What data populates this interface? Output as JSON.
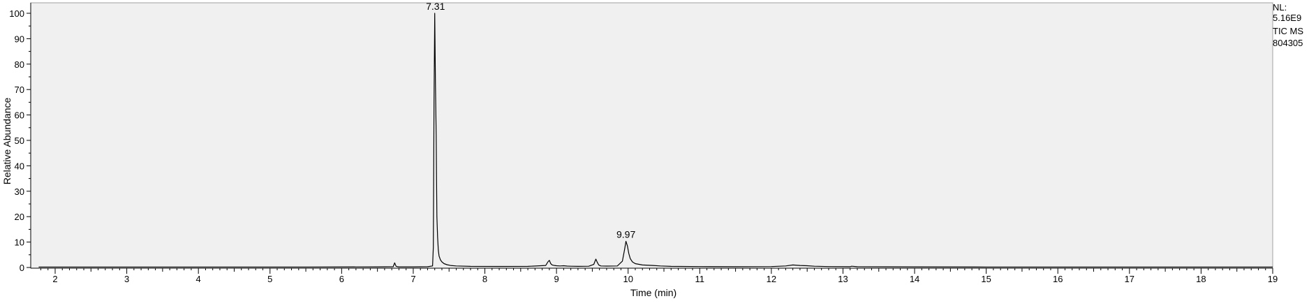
{
  "chart_data": {
    "type": "line",
    "xlabel": "Time (min)",
    "ylabel": "Relative Abundance",
    "xlim": [
      1.77,
      19.0
    ],
    "ylim": [
      0,
      100
    ],
    "x_ticks": [
      "2",
      "3",
      "4",
      "5",
      "6",
      "7",
      "8",
      "9",
      "10",
      "11",
      "12",
      "13",
      "14",
      "15",
      "16",
      "17",
      "18",
      "19"
    ],
    "y_ticks": [
      "0",
      "10",
      "20",
      "30",
      "40",
      "50",
      "60",
      "70",
      "80",
      "90",
      "100"
    ],
    "grid": false,
    "legend": "none",
    "info_text": [
      "NL:",
      "5.16E9",
      "TIC MS",
      "804305"
    ],
    "peak_labels": [
      {
        "text": "7.31",
        "x": 7.31,
        "y": 100
      },
      {
        "text": "9.97",
        "x": 9.97,
        "y": 10.3
      }
    ],
    "series": [
      {
        "x": [
          1.77,
          2.5,
          3.5,
          4.5,
          5.5,
          6.5,
          6.72,
          6.74,
          6.76,
          6.78,
          6.8,
          7.0,
          7.2,
          7.27,
          7.28,
          7.29,
          7.3,
          7.31,
          7.32,
          7.325,
          7.33,
          7.34,
          7.35,
          7.36,
          7.38,
          7.4,
          7.43,
          7.47,
          7.52,
          7.6,
          7.8,
          8.2,
          8.6,
          8.85,
          8.88,
          8.9,
          8.92,
          8.94,
          8.97,
          9.0,
          9.05,
          9.1,
          9.15,
          9.2,
          9.3,
          9.45,
          9.52,
          9.55,
          9.57,
          9.59,
          9.62,
          9.7,
          9.85,
          9.92,
          9.95,
          9.97,
          9.99,
          10.01,
          10.03,
          10.06,
          10.1,
          10.2,
          10.35,
          10.45,
          10.6,
          11.0,
          11.5,
          12.0,
          12.2,
          12.3,
          12.4,
          12.5,
          12.6,
          12.8,
          13.1,
          13.12,
          13.2,
          14.0,
          15.0,
          16.0,
          17.0,
          18.0,
          19.0
        ],
        "y": [
          0.2,
          0.2,
          0.2,
          0.2,
          0.2,
          0.25,
          0.3,
          1.8,
          0.5,
          0.3,
          0.25,
          0.25,
          0.3,
          0.6,
          8,
          65,
          100,
          73,
          52,
          35,
          20,
          12,
          7,
          4.5,
          3,
          2.2,
          1.5,
          1.1,
          0.8,
          0.6,
          0.45,
          0.4,
          0.45,
          0.8,
          2.2,
          2.8,
          1.5,
          1.0,
          0.8,
          0.7,
          0.6,
          0.7,
          0.55,
          0.5,
          0.45,
          0.5,
          1.2,
          3.3,
          2.0,
          1.0,
          0.6,
          0.55,
          0.6,
          2.5,
          7,
          10.3,
          8.5,
          5.5,
          3.5,
          2.2,
          1.5,
          1.0,
          0.8,
          0.6,
          0.45,
          0.35,
          0.3,
          0.35,
          0.6,
          1.0,
          0.8,
          0.7,
          0.5,
          0.35,
          0.3,
          0.5,
          0.3,
          0.25,
          0.2,
          0.2,
          0.2,
          0.2,
          0.2
        ]
      }
    ]
  }
}
